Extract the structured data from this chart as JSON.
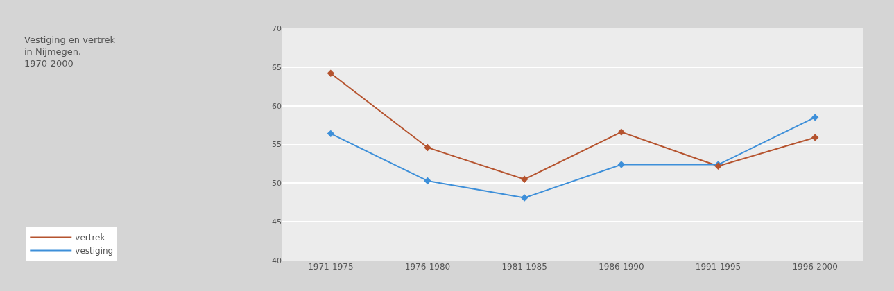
{
  "chart_data": {
    "type": "line",
    "title": "Vestiging en vertrek in Nijmegen, 1970-2000",
    "categories": [
      "1971-1975",
      "1976-1980",
      "1981-1985",
      "1986-1990",
      "1991-1995",
      "1996-2000"
    ],
    "series": [
      {
        "name": "vertrek",
        "color": "#b5532e",
        "values": [
          64.2,
          54.6,
          50.5,
          56.6,
          52.2,
          55.9
        ]
      },
      {
        "name": "vestiging",
        "color": "#3d8fd9",
        "values": [
          56.4,
          50.3,
          48.1,
          52.4,
          52.4,
          58.5
        ]
      }
    ],
    "ylim": [
      40,
      70
    ],
    "yticks": [
      40,
      45,
      50,
      55,
      60,
      65,
      70
    ],
    "grid": "y",
    "legend": "bottom left",
    "marker": "diamond",
    "line_style": "solid"
  }
}
